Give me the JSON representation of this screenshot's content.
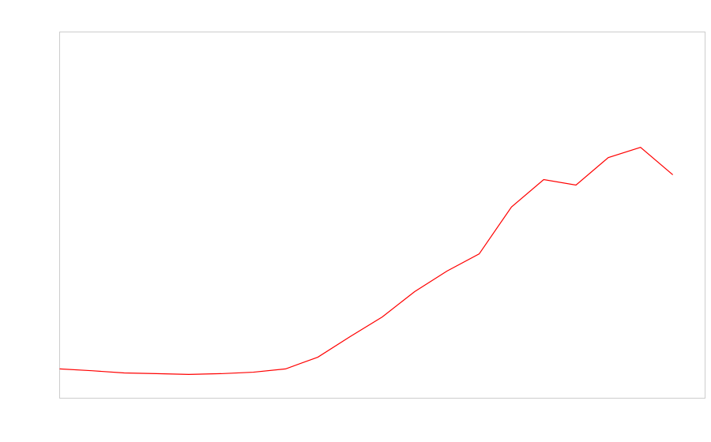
{
  "chart_data": {
    "type": "line",
    "x": [
      0,
      1,
      2,
      3,
      4,
      5,
      6,
      7,
      8,
      9,
      10,
      11,
      12,
      13,
      14,
      15,
      16,
      17,
      18,
      19
    ],
    "series": [
      {
        "color": "#ff0000",
        "values": [
          8.0,
          7.5,
          6.9,
          6.7,
          6.5,
          6.7,
          7.1,
          8.0,
          11.2,
          16.8,
          22.2,
          29.1,
          34.7,
          39.4,
          52.2,
          59.7,
          58.2,
          65.7,
          68.5,
          61.0
        ]
      }
    ],
    "xlim": [
      0,
      20
    ],
    "ylim": [
      0,
      100
    ],
    "frame_color": "#cccccc"
  }
}
